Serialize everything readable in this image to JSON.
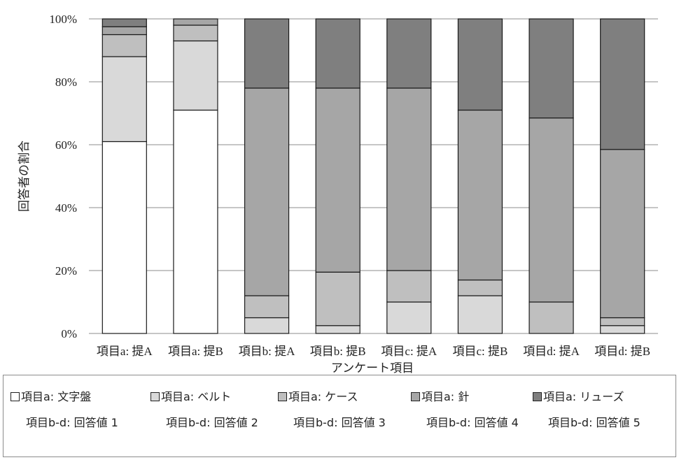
{
  "chart_data": {
    "type": "bar",
    "stacked": true,
    "percent": true,
    "categories": [
      "項目a: 提A",
      "項目a: 提B",
      "項目b: 提A",
      "項目b: 提B",
      "項目c: 提A",
      "項目c: 提B",
      "項目d: 提A",
      "項目d: 提B"
    ],
    "series": [
      {
        "name": "項目a: 文字盤",
        "name2": "項目b-d: 回答値 1",
        "color": "#ffffff",
        "values": [
          61,
          71,
          0,
          0,
          0,
          0,
          0,
          0
        ]
      },
      {
        "name": "項目a: ベルト",
        "name2": "項目b-d: 回答値 2",
        "color": "#d9d9d9",
        "values": [
          27,
          22,
          5,
          2.5,
          10,
          12,
          0,
          2.5
        ]
      },
      {
        "name": "項目a: ケース",
        "name2": "項目b-d: 回答値 3",
        "color": "#bfbfbf",
        "values": [
          7,
          5,
          7,
          17,
          10,
          5,
          10,
          2.5
        ]
      },
      {
        "name": "項目a: 針",
        "name2": "項目b-d: 回答値 4",
        "color": "#a6a6a6",
        "values": [
          2.5,
          2,
          66,
          58.5,
          58,
          54,
          58.5,
          53.5
        ]
      },
      {
        "name": "項目a: リューズ",
        "name2": "項目b-d: 回答値 5",
        "color": "#7f7f7f",
        "values": [
          2.5,
          0,
          22,
          22,
          22,
          29,
          31.5,
          41.5
        ]
      }
    ],
    "yticks": [
      "0%",
      "20%",
      "40%",
      "60%",
      "80%",
      "100%"
    ],
    "ylim": [
      0,
      100
    ],
    "xlabel": "アンケート項目",
    "ylabel": "回答者の割合",
    "grid": true,
    "legend": "bottom"
  }
}
